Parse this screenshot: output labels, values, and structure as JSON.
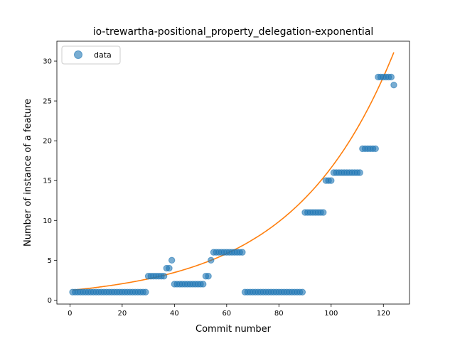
{
  "chart_data": {
    "type": "scatter",
    "title": "io-trewartha-positional_property_delegation-exponential",
    "xlabel": "Commit number",
    "ylabel": "Number of instance of a feature",
    "xlim": [
      -5,
      130
    ],
    "ylim": [
      -0.5,
      32.5
    ],
    "xticks": [
      0,
      20,
      40,
      60,
      80,
      100,
      120
    ],
    "yticks": [
      0,
      5,
      10,
      15,
      20,
      25,
      30
    ],
    "grid": false,
    "legend_position": "top-left",
    "colors": {
      "data": "#1f77b4",
      "fit": "#ff7f0e"
    },
    "series": [
      {
        "name": "data",
        "kind": "scatter",
        "x": [
          1,
          2,
          3,
          4,
          5,
          6,
          7,
          8,
          9,
          10,
          11,
          12,
          13,
          14,
          15,
          16,
          17,
          18,
          19,
          20,
          21,
          22,
          23,
          24,
          25,
          26,
          27,
          28,
          29,
          30,
          31,
          32,
          33,
          34,
          35,
          36,
          37,
          38,
          39,
          40,
          41,
          42,
          43,
          44,
          45,
          46,
          47,
          48,
          49,
          50,
          51,
          52,
          53,
          54,
          55,
          56,
          57,
          58,
          59,
          60,
          61,
          62,
          63,
          64,
          65,
          66,
          67,
          68,
          69,
          70,
          71,
          72,
          73,
          74,
          75,
          76,
          77,
          78,
          79,
          80,
          81,
          82,
          83,
          84,
          85,
          86,
          87,
          88,
          89,
          90,
          91,
          92,
          93,
          94,
          95,
          96,
          97,
          98,
          99,
          100,
          101,
          102,
          103,
          104,
          105,
          106,
          107,
          108,
          109,
          110,
          111,
          112,
          113,
          114,
          115,
          116,
          117,
          118,
          119,
          120,
          121,
          122,
          123,
          124
        ],
        "y": [
          1,
          1,
          1,
          1,
          1,
          1,
          1,
          1,
          1,
          1,
          1,
          1,
          1,
          1,
          1,
          1,
          1,
          1,
          1,
          1,
          1,
          1,
          1,
          1,
          1,
          1,
          1,
          1,
          1,
          3,
          3,
          3,
          3,
          3,
          3,
          3,
          4,
          4,
          5,
          2,
          2,
          2,
          2,
          2,
          2,
          2,
          2,
          2,
          2,
          2,
          2,
          3,
          3,
          5,
          6,
          6,
          6,
          6,
          6,
          6,
          6,
          6,
          6,
          6,
          6,
          6,
          1,
          1,
          1,
          1,
          1,
          1,
          1,
          1,
          1,
          1,
          1,
          1,
          1,
          1,
          1,
          1,
          1,
          1,
          1,
          1,
          1,
          1,
          1,
          11,
          11,
          11,
          11,
          11,
          11,
          11,
          11,
          15,
          15,
          15,
          16,
          16,
          16,
          16,
          16,
          16,
          16,
          16,
          16,
          16,
          16,
          19,
          19,
          19,
          19,
          19,
          19,
          28,
          28,
          28,
          28,
          28,
          28,
          27
        ]
      }
    ],
    "fit": {
      "kind": "exponential",
      "x_start": 1,
      "x_end": 124,
      "y_start": 1.25,
      "y_end": 31.1
    }
  },
  "legend": {
    "label": "data"
  }
}
